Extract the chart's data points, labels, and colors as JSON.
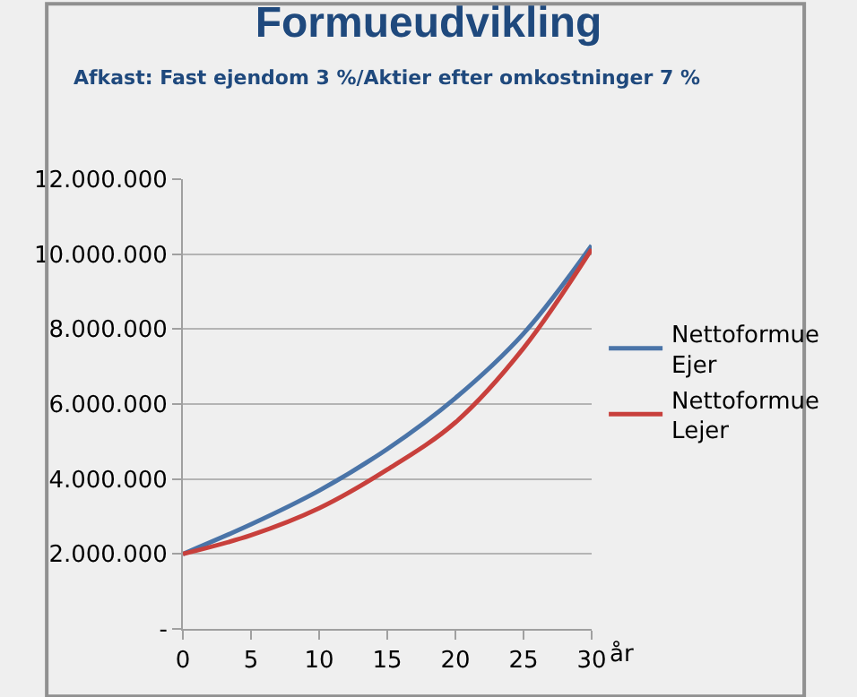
{
  "chart_data": {
    "type": "line",
    "title": "Formueudvikling",
    "subtitle": "Afkast: Fast ejendom 3 %/Aktier efter omkostninger 7 %",
    "xlabel": "år",
    "x": [
      0,
      5,
      10,
      15,
      20,
      25,
      30
    ],
    "series": [
      {
        "name": "Nettoformue Ejer",
        "color": "#4a74a8",
        "values": [
          2000000,
          2790000,
          3690000,
          4800000,
          6160000,
          7880000,
          10230000
        ]
      },
      {
        "name": "Nettoformue Lejer",
        "color": "#c8403c",
        "values": [
          2000000,
          2500000,
          3220000,
          4250000,
          5510000,
          7490000,
          10130000
        ]
      }
    ],
    "xlim": [
      0,
      30
    ],
    "xticks": [
      0,
      5,
      10,
      15,
      20,
      25,
      30
    ],
    "ylim": [
      0,
      12000000
    ],
    "yticks": [
      {
        "value": 0,
        "label": "-"
      },
      {
        "value": 2000000,
        "label": "2.000.000"
      },
      {
        "value": 4000000,
        "label": "4.000.000"
      },
      {
        "value": 6000000,
        "label": "6.000.000"
      },
      {
        "value": 8000000,
        "label": "8.000.000"
      },
      {
        "value": 10000000,
        "label": "10.000.000"
      },
      {
        "value": 12000000,
        "label": "12.000.000"
      }
    ],
    "grid": "y",
    "legend": "right",
    "marker": "none",
    "line_style": "solid"
  }
}
